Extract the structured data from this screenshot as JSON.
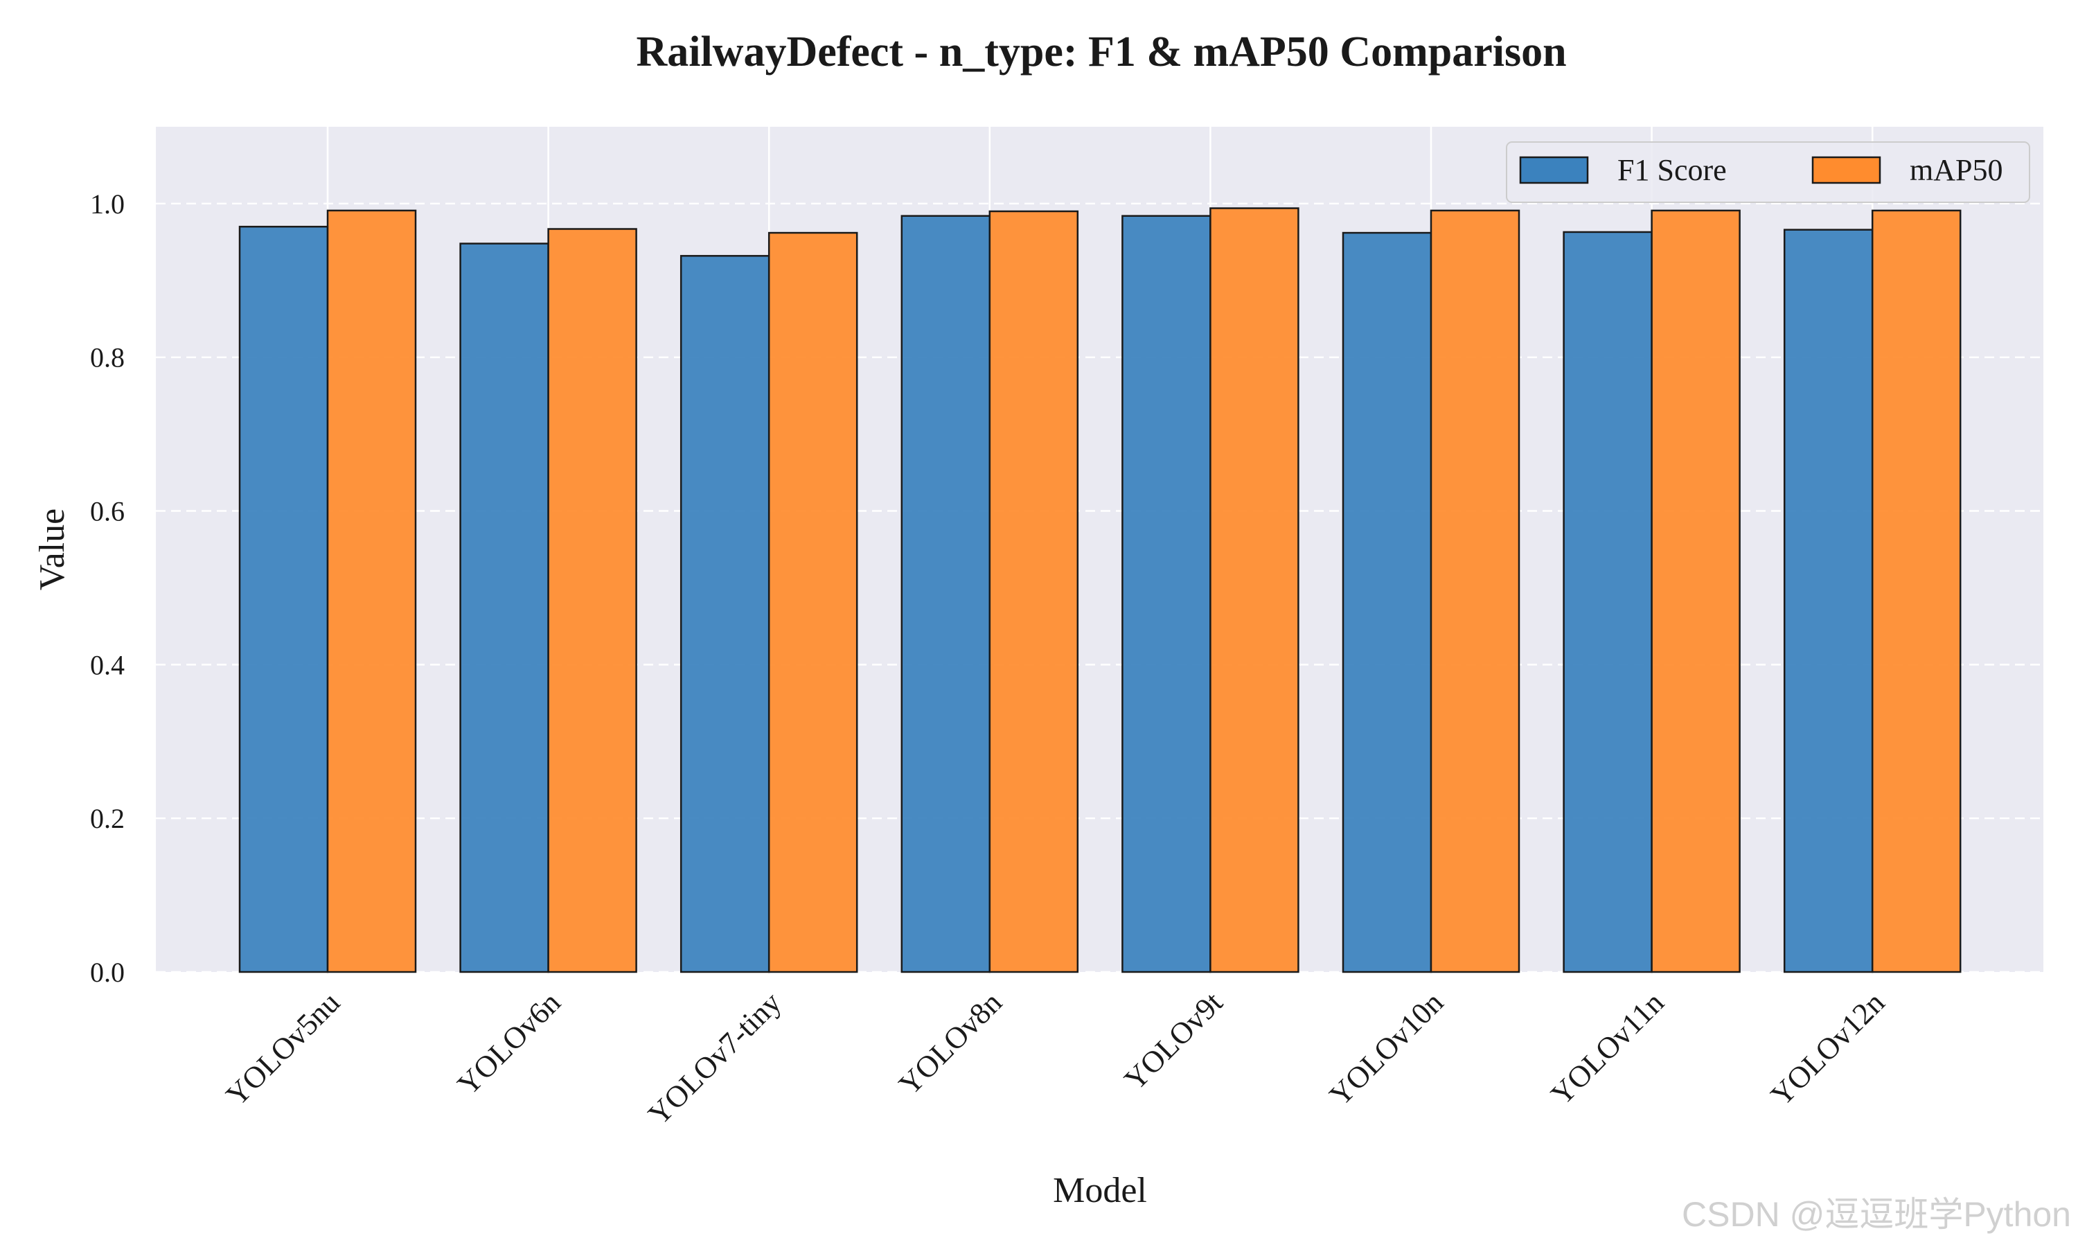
{
  "chart_data": {
    "type": "bar",
    "title": "RailwayDefect - n_type: F1 & mAP50 Comparison",
    "xlabel": "Model",
    "ylabel": "Value",
    "ylim": [
      0,
      1.1
    ],
    "yticks": [
      "0.0",
      "0.2",
      "0.4",
      "0.6",
      "0.8",
      "1.0"
    ],
    "categories": [
      "YOLOv5nu",
      "YOLOv6n",
      "YOLOv7-tiny",
      "YOLOv8n",
      "YOLOv9t",
      "YOLOv10n",
      "YOLOv11n",
      "YOLOv12n"
    ],
    "series": [
      {
        "name": "F1 Score",
        "color": "#3b82be",
        "values": [
          0.97,
          0.948,
          0.932,
          0.984,
          0.984,
          0.962,
          0.963,
          0.966
        ]
      },
      {
        "name": "mAP50",
        "color": "#ff8c2e",
        "values": [
          0.991,
          0.967,
          0.962,
          0.99,
          0.994,
          0.991,
          0.991,
          0.991
        ]
      }
    ],
    "grid": true,
    "legend_position": "top-right",
    "background_color": "#eaeaf2"
  },
  "watermark": "CSDN @逗逗班学Python"
}
